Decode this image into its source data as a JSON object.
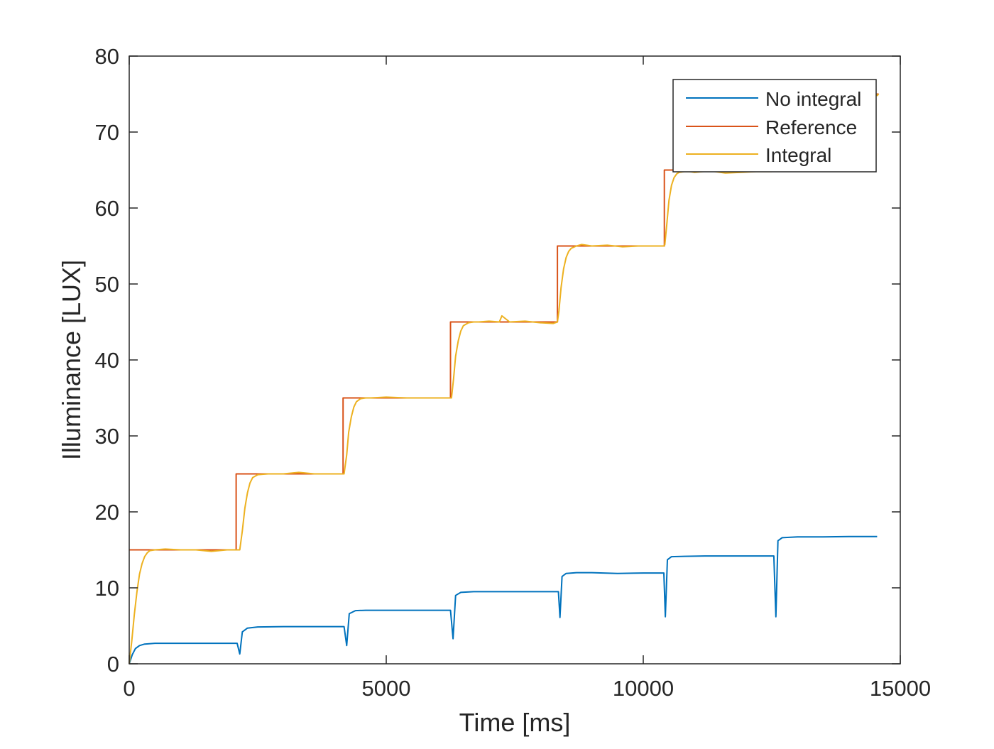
{
  "chart_data": {
    "type": "line",
    "title": "",
    "xlabel": "Time [ms]",
    "ylabel": "Illuminance [LUX]",
    "xlim": [
      0,
      15000
    ],
    "ylim": [
      0,
      80
    ],
    "xticks": [
      0,
      5000,
      10000,
      15000
    ],
    "yticks": [
      0,
      10,
      20,
      30,
      40,
      50,
      60,
      70,
      80
    ],
    "xtick_labels": [
      "0",
      "5000",
      "10000",
      "15000"
    ],
    "ytick_labels": [
      "0",
      "10",
      "20",
      "30",
      "40",
      "50",
      "60",
      "70",
      "80"
    ],
    "grid": false,
    "legend_position": "top-right",
    "series": [
      {
        "name": "No integral",
        "color": "#0072BD",
        "x": [
          0,
          60,
          120,
          200,
          300,
          500,
          800,
          1200,
          1600,
          2000,
          2100,
          2150,
          2200,
          2300,
          2500,
          3000,
          3500,
          4000,
          4180,
          4230,
          4280,
          4400,
          4600,
          5000,
          5500,
          6000,
          6250,
          6300,
          6350,
          6450,
          6700,
          7000,
          7500,
          8000,
          8350,
          8380,
          8420,
          8500,
          8700,
          9000,
          9500,
          10000,
          10400,
          10430,
          10470,
          10550,
          10800,
          11200,
          11800,
          12400,
          12540,
          12580,
          12620,
          12700,
          13000,
          13500,
          14000,
          14550
        ],
        "y": [
          0,
          1.2,
          2.0,
          2.4,
          2.6,
          2.7,
          2.7,
          2.7,
          2.7,
          2.7,
          2.7,
          1.3,
          4.2,
          4.7,
          4.85,
          4.9,
          4.9,
          4.9,
          4.9,
          2.4,
          6.6,
          7.0,
          7.05,
          7.05,
          7.05,
          7.05,
          7.05,
          3.3,
          9.0,
          9.4,
          9.5,
          9.5,
          9.5,
          9.5,
          9.5,
          6.1,
          11.5,
          11.9,
          12.0,
          12.0,
          11.9,
          11.95,
          11.95,
          6.2,
          13.7,
          14.1,
          14.15,
          14.2,
          14.2,
          14.2,
          14.2,
          6.2,
          16.2,
          16.6,
          16.7,
          16.7,
          16.75,
          16.75
        ]
      },
      {
        "name": "Reference",
        "color": "#D95319",
        "x": [
          0,
          2080,
          2080,
          4160,
          4160,
          6250,
          6250,
          8330,
          8330,
          10410,
          10410,
          12500,
          12500,
          14580
        ],
        "y": [
          15,
          15,
          25,
          25,
          35,
          35,
          45,
          45,
          55,
          55,
          65,
          65,
          75,
          75
        ]
      },
      {
        "name": "Integral",
        "color": "#EDB120",
        "x": [
          0,
          50,
          100,
          150,
          200,
          250,
          300,
          350,
          400,
          500,
          700,
          1000,
          1300,
          1600,
          1900,
          2150,
          2200,
          2250,
          2300,
          2350,
          2400,
          2500,
          2700,
          3000,
          3300,
          3600,
          3900,
          4180,
          4230,
          4270,
          4320,
          4370,
          4420,
          4500,
          4600,
          4700,
          5000,
          5400,
          5800,
          6200,
          6270,
          6310,
          6350,
          6400,
          6450,
          6500,
          6600,
          6700,
          6800,
          7000,
          7200,
          7250,
          7400,
          7700,
          8000,
          8250,
          8330,
          8360,
          8400,
          8450,
          8500,
          8550,
          8600,
          8700,
          8800,
          9000,
          9300,
          9600,
          9900,
          10200,
          10400,
          10420,
          10460,
          10500,
          10550,
          10600,
          10650,
          10700,
          10800,
          10900,
          11000,
          11300,
          11600,
          11900,
          12200,
          12500,
          12550,
          12600,
          12650,
          12700,
          12800,
          13000,
          13500,
          14000,
          14200,
          14350,
          14400,
          14450,
          14500,
          14550,
          14580
        ],
        "y": [
          0,
          3.0,
          6.5,
          9.5,
          11.8,
          13.2,
          14.1,
          14.6,
          14.9,
          15.0,
          15.1,
          15.0,
          15.0,
          14.8,
          15.0,
          15.0,
          17.5,
          20.5,
          22.5,
          23.8,
          24.5,
          24.9,
          25.0,
          25.0,
          25.2,
          25.0,
          25.0,
          25.0,
          27.5,
          30.5,
          32.5,
          33.8,
          34.5,
          34.9,
          35.0,
          35.0,
          35.1,
          35.0,
          35.0,
          35.0,
          35.0,
          37.5,
          40.5,
          42.5,
          43.8,
          44.5,
          44.9,
          45.0,
          45.0,
          45.1,
          45.0,
          45.8,
          45.0,
          45.1,
          44.9,
          44.8,
          45.0,
          46.5,
          49.5,
          52.0,
          53.5,
          54.3,
          54.7,
          55.0,
          55.2,
          55.0,
          55.1,
          54.9,
          55.0,
          55.0,
          55.0,
          55.2,
          58.0,
          61.0,
          63.0,
          64.0,
          64.5,
          64.7,
          64.8,
          64.8,
          64.7,
          64.9,
          64.6,
          64.7,
          64.8,
          64.8,
          67.0,
          70.0,
          72.5,
          74.0,
          74.8,
          75.0,
          75.1,
          75.0,
          75.0,
          75.2,
          74.6,
          75.0,
          75.2,
          74.8,
          75.0
        ]
      }
    ]
  }
}
